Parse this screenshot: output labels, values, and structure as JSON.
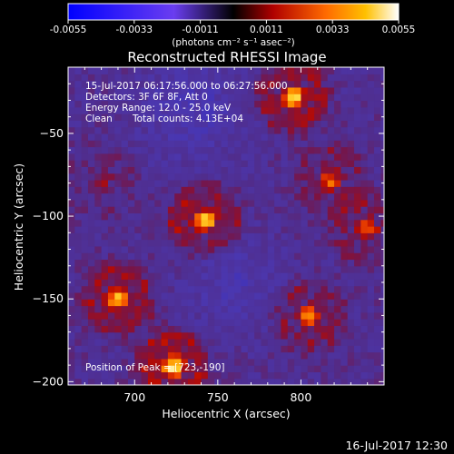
{
  "colorbar": {
    "ticks": [
      "-0.0055",
      "-0.0033",
      "-0.0011",
      "0.0011",
      "0.0033",
      "0.0055"
    ],
    "label": "(photons cm⁻² s⁻¹ asec⁻²)",
    "range": [
      -0.0055,
      0.0055
    ]
  },
  "info": {
    "time_range": "15-Jul-2017 06:17:56.000 to 06:27:56.000",
    "detectors": "Detectors: 3F 6F 8F, Att 0",
    "energy": "Energy Range: 12.0 - 25.0 keV",
    "method": "Clean",
    "total_counts": "Total counts: 4.13E+04",
    "peak": "Position of Peak = [723,-190]"
  },
  "footer": {
    "timestamp": "16-Jul-2017 12:30"
  },
  "colors": {
    "background": "#000000",
    "text": "#ffffff"
  },
  "chart_data": {
    "type": "heatmap",
    "title": "Reconstructed RHESSI Image",
    "xlabel": "Heliocentric X (arcsec)",
    "ylabel": "Heliocentric Y (arcsec)",
    "xlim": [
      660,
      850
    ],
    "ylim": [
      -202,
      -10
    ],
    "xticks": [
      700,
      750,
      800
    ],
    "yticks": [
      -50,
      -100,
      -150,
      -200
    ],
    "peak": [
      723,
      -190
    ],
    "sources": [
      {
        "x": 742,
        "y": -102,
        "peak": 0.0052
      },
      {
        "x": 795,
        "y": -28,
        "peak": 0.0048
      },
      {
        "x": 818,
        "y": -78,
        "peak": 0.003
      },
      {
        "x": 840,
        "y": -108,
        "peak": 0.0032
      },
      {
        "x": 805,
        "y": -160,
        "peak": 0.0036
      },
      {
        "x": 690,
        "y": -150,
        "peak": 0.0045
      },
      {
        "x": 723,
        "y": -190,
        "peak": 0.0055
      },
      {
        "x": 680,
        "y": -78,
        "peak": 0.0016
      }
    ]
  }
}
